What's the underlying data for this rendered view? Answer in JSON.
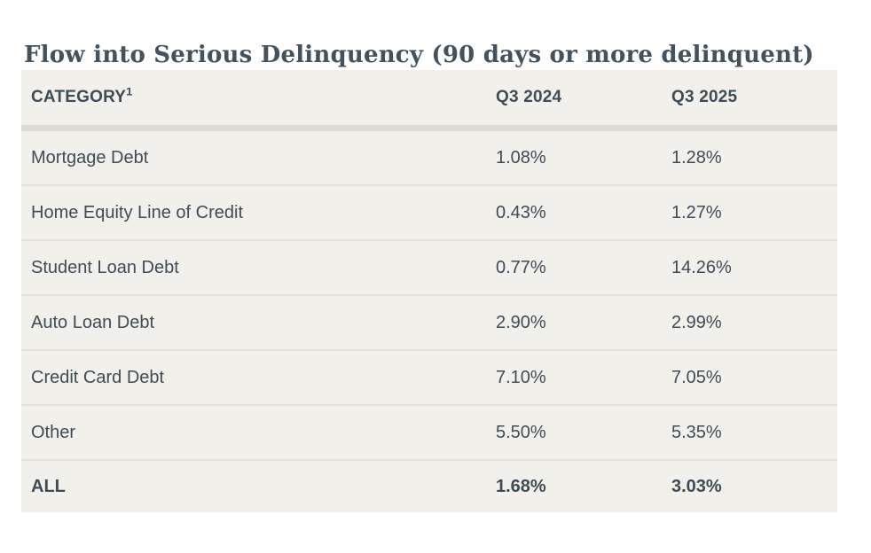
{
  "title": "Flow into Serious Delinquency (90 days or more delinquent)",
  "table": {
    "columns": [
      "CATEGORY",
      "Q3 2024",
      "Q3 2025"
    ],
    "footnote_marker": "1",
    "rows": [
      {
        "category": "Mortgage Debt",
        "q3_2024": "1.08%",
        "q3_2025": "1.28%",
        "bold": false
      },
      {
        "category": "Home Equity Line of Credit",
        "q3_2024": "0.43%",
        "q3_2025": "1.27%",
        "bold": false
      },
      {
        "category": "Student Loan Debt",
        "q3_2024": "0.77%",
        "q3_2025": "14.26%",
        "bold": false
      },
      {
        "category": "Auto Loan Debt",
        "q3_2024": "2.90%",
        "q3_2025": "2.99%",
        "bold": false
      },
      {
        "category": "Credit Card Debt",
        "q3_2024": "7.10%",
        "q3_2025": "7.05%",
        "bold": false
      },
      {
        "category": "Other",
        "q3_2024": "5.50%",
        "q3_2025": "5.35%",
        "bold": false
      },
      {
        "category": "ALL",
        "q3_2024": "1.68%",
        "q3_2025": "3.03%",
        "bold": true
      }
    ]
  },
  "chart_data": {
    "type": "table",
    "title": "Flow into Serious Delinquency (90 days or more delinquent)",
    "columns": [
      "CATEGORY¹",
      "Q3 2024",
      "Q3 2025"
    ],
    "categories": [
      "Mortgage Debt",
      "Home Equity Line of Credit",
      "Student Loan Debt",
      "Auto Loan Debt",
      "Credit Card Debt",
      "Other",
      "ALL"
    ],
    "series": [
      {
        "name": "Q3 2024",
        "values": [
          1.08,
          0.43,
          0.77,
          2.9,
          7.1,
          5.5,
          1.68
        ]
      },
      {
        "name": "Q3 2025",
        "values": [
          1.28,
          1.27,
          14.26,
          2.99,
          7.05,
          5.35,
          3.03
        ]
      }
    ],
    "units": "percent"
  },
  "colors": {
    "page_background": "#ffffff",
    "table_background": "#f1f0ea",
    "title_text": "#44525e",
    "table_text": "#3e4c56",
    "header_divider": "#dcdbd5",
    "row_divider": "#e2e1db"
  }
}
